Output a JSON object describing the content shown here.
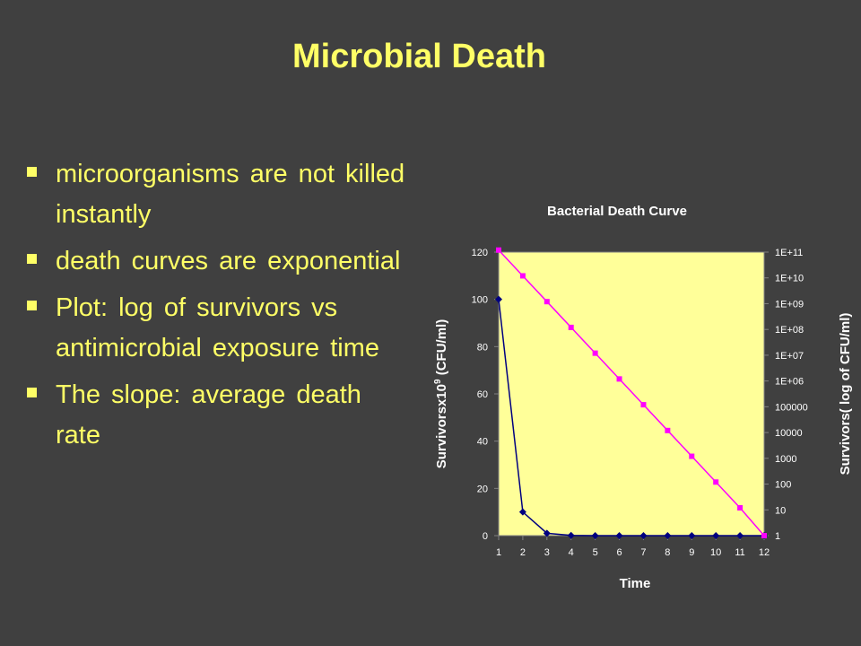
{
  "slide": {
    "title": "Microbial Death",
    "bullets": [
      "microorganisms are not killed instantly",
      "death curves are exponential",
      "Plot: log of survivors vs antimicrobial exposure time",
      "The slope: average death rate"
    ]
  },
  "colors": {
    "background": "#404040",
    "text": "#ffff66",
    "plot_area": "#ffff99",
    "series_primary": "#000080",
    "series_secondary": "#ff00ff"
  },
  "chart_data": {
    "type": "line",
    "title": "Bacterial Death Curve",
    "xlabel": "Time",
    "ylabel": "Survivorsx10",
    "ylabel_sup": "9",
    "ylabel_suffix": " (CFU/ml)",
    "y2label": "Survivors( log of CFU/ml)",
    "x": [
      1,
      2,
      3,
      4,
      5,
      6,
      7,
      8,
      9,
      10,
      11,
      12
    ],
    "ylim": [
      0,
      120
    ],
    "yticks": [
      "0",
      "20",
      "40",
      "60",
      "80",
      "100",
      "120"
    ],
    "y2_scale": "log",
    "y2lim": [
      1,
      100000000000
    ],
    "y2ticks": [
      "1",
      "10",
      "100",
      "1000",
      "10000",
      "100000",
      "1E+06",
      "1E+07",
      "1E+08",
      "1E+09",
      "1E+10",
      "1E+11"
    ],
    "grid": false,
    "series": [
      {
        "axis": "left",
        "color": "#000080",
        "marker": "diamond",
        "values": [
          100,
          10,
          1,
          0.1,
          0.01,
          0.001,
          0.0001,
          1e-05,
          1e-06,
          1e-07,
          1e-08,
          1e-09
        ]
      },
      {
        "axis": "right",
        "color": "#ff00ff",
        "marker": "square",
        "values": [
          120000000000,
          12000000000,
          1200000000,
          120000000,
          12000000,
          1200000,
          120000,
          12000,
          1200,
          120,
          12,
          1
        ]
      }
    ]
  }
}
